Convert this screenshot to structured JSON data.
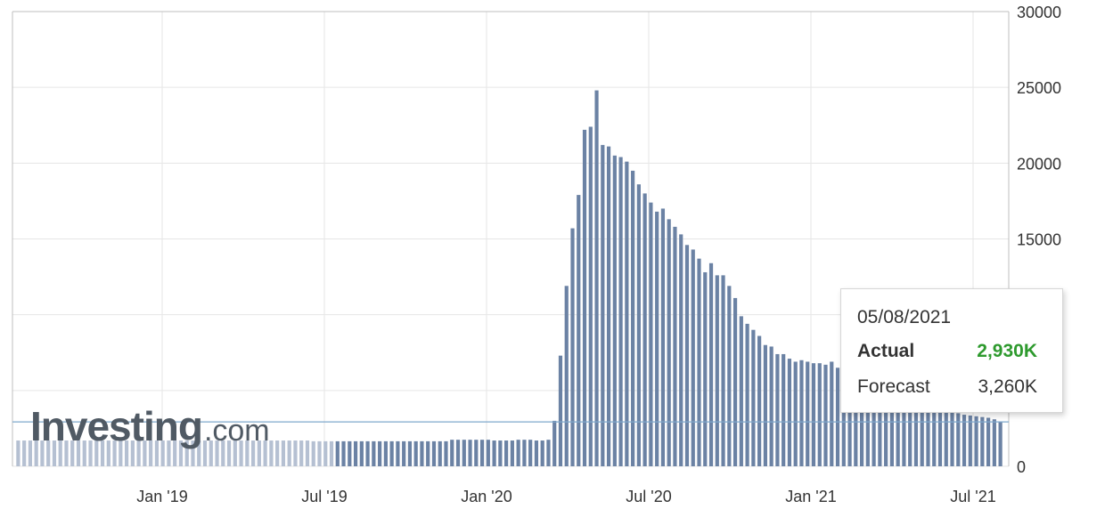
{
  "chart_data": {
    "type": "bar",
    "x_tick_labels": [
      "Jan '19",
      "Jul '19",
      "Jan '20",
      "Jul '20",
      "Jan '21",
      "Jul '21"
    ],
    "y_tick_labels": [
      "30000",
      "25000",
      "20000",
      "15000",
      "0"
    ],
    "ylim": [
      0,
      30000
    ],
    "grid": true,
    "reference_line_value": 2930,
    "values": [
      1700,
      1700,
      1700,
      1700,
      1700,
      1700,
      1700,
      1700,
      1700,
      1700,
      1700,
      1700,
      1700,
      1700,
      1700,
      1700,
      1700,
      1700,
      1700,
      1700,
      1700,
      1700,
      1700,
      1700,
      1700,
      1700,
      1700,
      1700,
      1700,
      1700,
      1700,
      1700,
      1700,
      1700,
      1700,
      1700,
      1700,
      1700,
      1700,
      1700,
      1700,
      1700,
      1700,
      1700,
      1700,
      1700,
      1700,
      1700,
      1700,
      1650,
      1650,
      1650,
      1650,
      1650,
      1650,
      1650,
      1650,
      1650,
      1650,
      1650,
      1650,
      1650,
      1650,
      1650,
      1650,
      1650,
      1650,
      1650,
      1650,
      1650,
      1650,
      1650,
      1750,
      1750,
      1750,
      1750,
      1750,
      1750,
      1750,
      1700,
      1700,
      1700,
      1700,
      1750,
      1750,
      1750,
      1700,
      1700,
      1750,
      3000,
      7300,
      11900,
      15700,
      17900,
      22200,
      22400,
      24800,
      21200,
      21100,
      20500,
      20400,
      20100,
      19500,
      18600,
      18000,
      17400,
      16800,
      17000,
      16300,
      15800,
      15300,
      14600,
      14300,
      13700,
      12800,
      13400,
      12600,
      12600,
      11900,
      11100,
      9900,
      9400,
      9000,
      8600,
      8000,
      7900,
      7400,
      7400,
      7100,
      6900,
      7000,
      6900,
      6800,
      6800,
      6700,
      6900,
      6500,
      6300,
      6200,
      6000,
      5800,
      5700,
      5600,
      5500,
      5400,
      5300,
      5100,
      5000,
      4800,
      4600,
      4500,
      4300,
      4100,
      3900,
      3700,
      3600,
      3500,
      3400,
      3350,
      3300,
      3250,
      3200,
      3100,
      2930
    ],
    "tooltip": {
      "date": "05/08/2021",
      "actual_label": "Actual",
      "actual_value": "2,930K",
      "forecast_label": "Forecast",
      "forecast_value": "3,260K"
    }
  },
  "colors": {
    "bar": "#6b82a4",
    "bar_faded": "#b5c0d2",
    "grid": "#e6e6e6",
    "axis": "#bfbfbf",
    "reference_line": "#7fa8cc",
    "actual_value": "#2e9a2e"
  },
  "watermark": {
    "brand": "Investing",
    "suffix": ".com"
  }
}
